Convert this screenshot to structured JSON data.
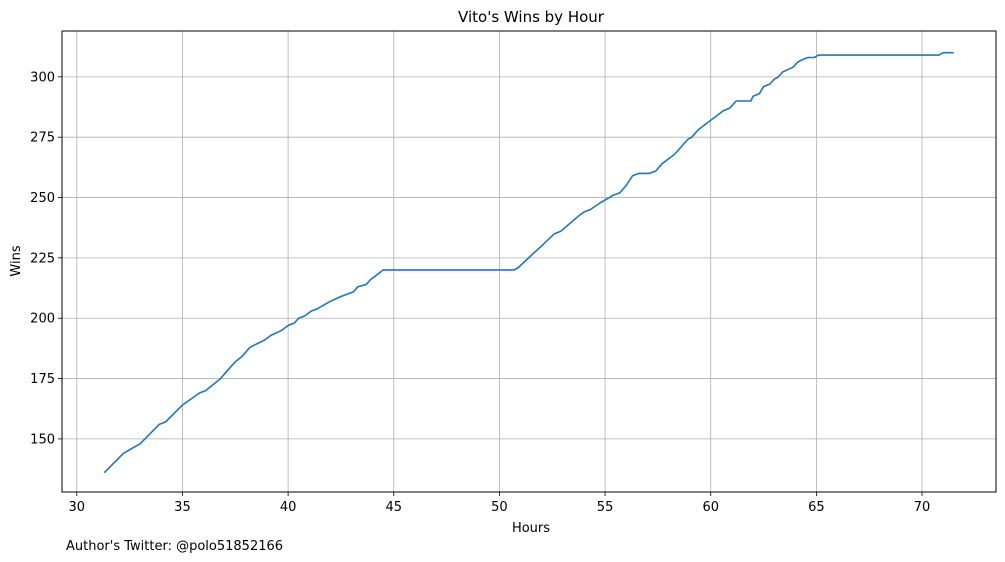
{
  "chart_data": {
    "type": "line",
    "title": "Vito's Wins by Hour",
    "xlabel": "Hours",
    "ylabel": "Wins",
    "xlim": [
      29.3,
      73.5
    ],
    "ylim": [
      128,
      319
    ],
    "grid": true,
    "xticks": [
      30,
      35,
      40,
      45,
      50,
      55,
      60,
      65,
      70
    ],
    "yticks": [
      150,
      175,
      200,
      225,
      250,
      275,
      300
    ],
    "line_color": "#1f77b4",
    "series": [
      {
        "x": [
          31.3,
          32.2,
          33.0,
          33.9,
          34.2,
          35.0,
          35.8,
          36.1,
          36.8,
          37.0,
          37.5,
          37.8,
          38.2,
          38.9,
          39.2,
          39.7,
          40.0,
          40.3,
          40.5,
          40.8,
          41.1,
          41.4,
          41.8,
          42.0,
          42.5,
          42.8,
          43.1,
          43.3,
          43.7,
          43.9,
          44.2,
          44.5,
          46.0,
          48.0,
          50.0,
          50.5,
          50.7,
          50.9,
          51.5,
          52.0,
          52.6,
          52.9,
          53.3,
          53.7,
          54.0,
          54.3,
          54.8,
          55.0,
          55.4,
          55.7,
          56.0,
          56.3,
          56.6,
          56.9,
          57.1,
          57.4,
          57.7,
          58.0,
          58.3,
          58.6,
          58.9,
          59.1,
          59.4,
          59.7,
          60.0,
          60.3,
          60.6,
          60.9,
          61.2,
          61.4,
          61.9,
          62.0,
          62.3,
          62.5,
          62.8,
          63.0,
          63.2,
          63.4,
          63.9,
          64.1,
          64.3,
          64.6,
          64.9,
          65.1,
          65.3,
          66.0,
          68.0,
          70.0,
          70.8,
          71.0,
          71.5
        ],
        "y": [
          136,
          144,
          148,
          156,
          157,
          164,
          169,
          170,
          175,
          177,
          182,
          184,
          188,
          191,
          193,
          195,
          197,
          198,
          200,
          201,
          203,
          204,
          206,
          207,
          209,
          210,
          211,
          213,
          214,
          216,
          218,
          220,
          220,
          220,
          220,
          220,
          220,
          221,
          226,
          230,
          235,
          236,
          239,
          242,
          244,
          245,
          248,
          249,
          251,
          252,
          255,
          259,
          260,
          260,
          260,
          261,
          264,
          266,
          268,
          271,
          274,
          275,
          278,
          280,
          282,
          284,
          286,
          287,
          290,
          290,
          290,
          292,
          293,
          296,
          297,
          299,
          300,
          302,
          304,
          306,
          307,
          308,
          308,
          309,
          309,
          309,
          309,
          309,
          309,
          310,
          310
        ]
      }
    ]
  },
  "footnote": "Author's Twitter: @polo51852166"
}
